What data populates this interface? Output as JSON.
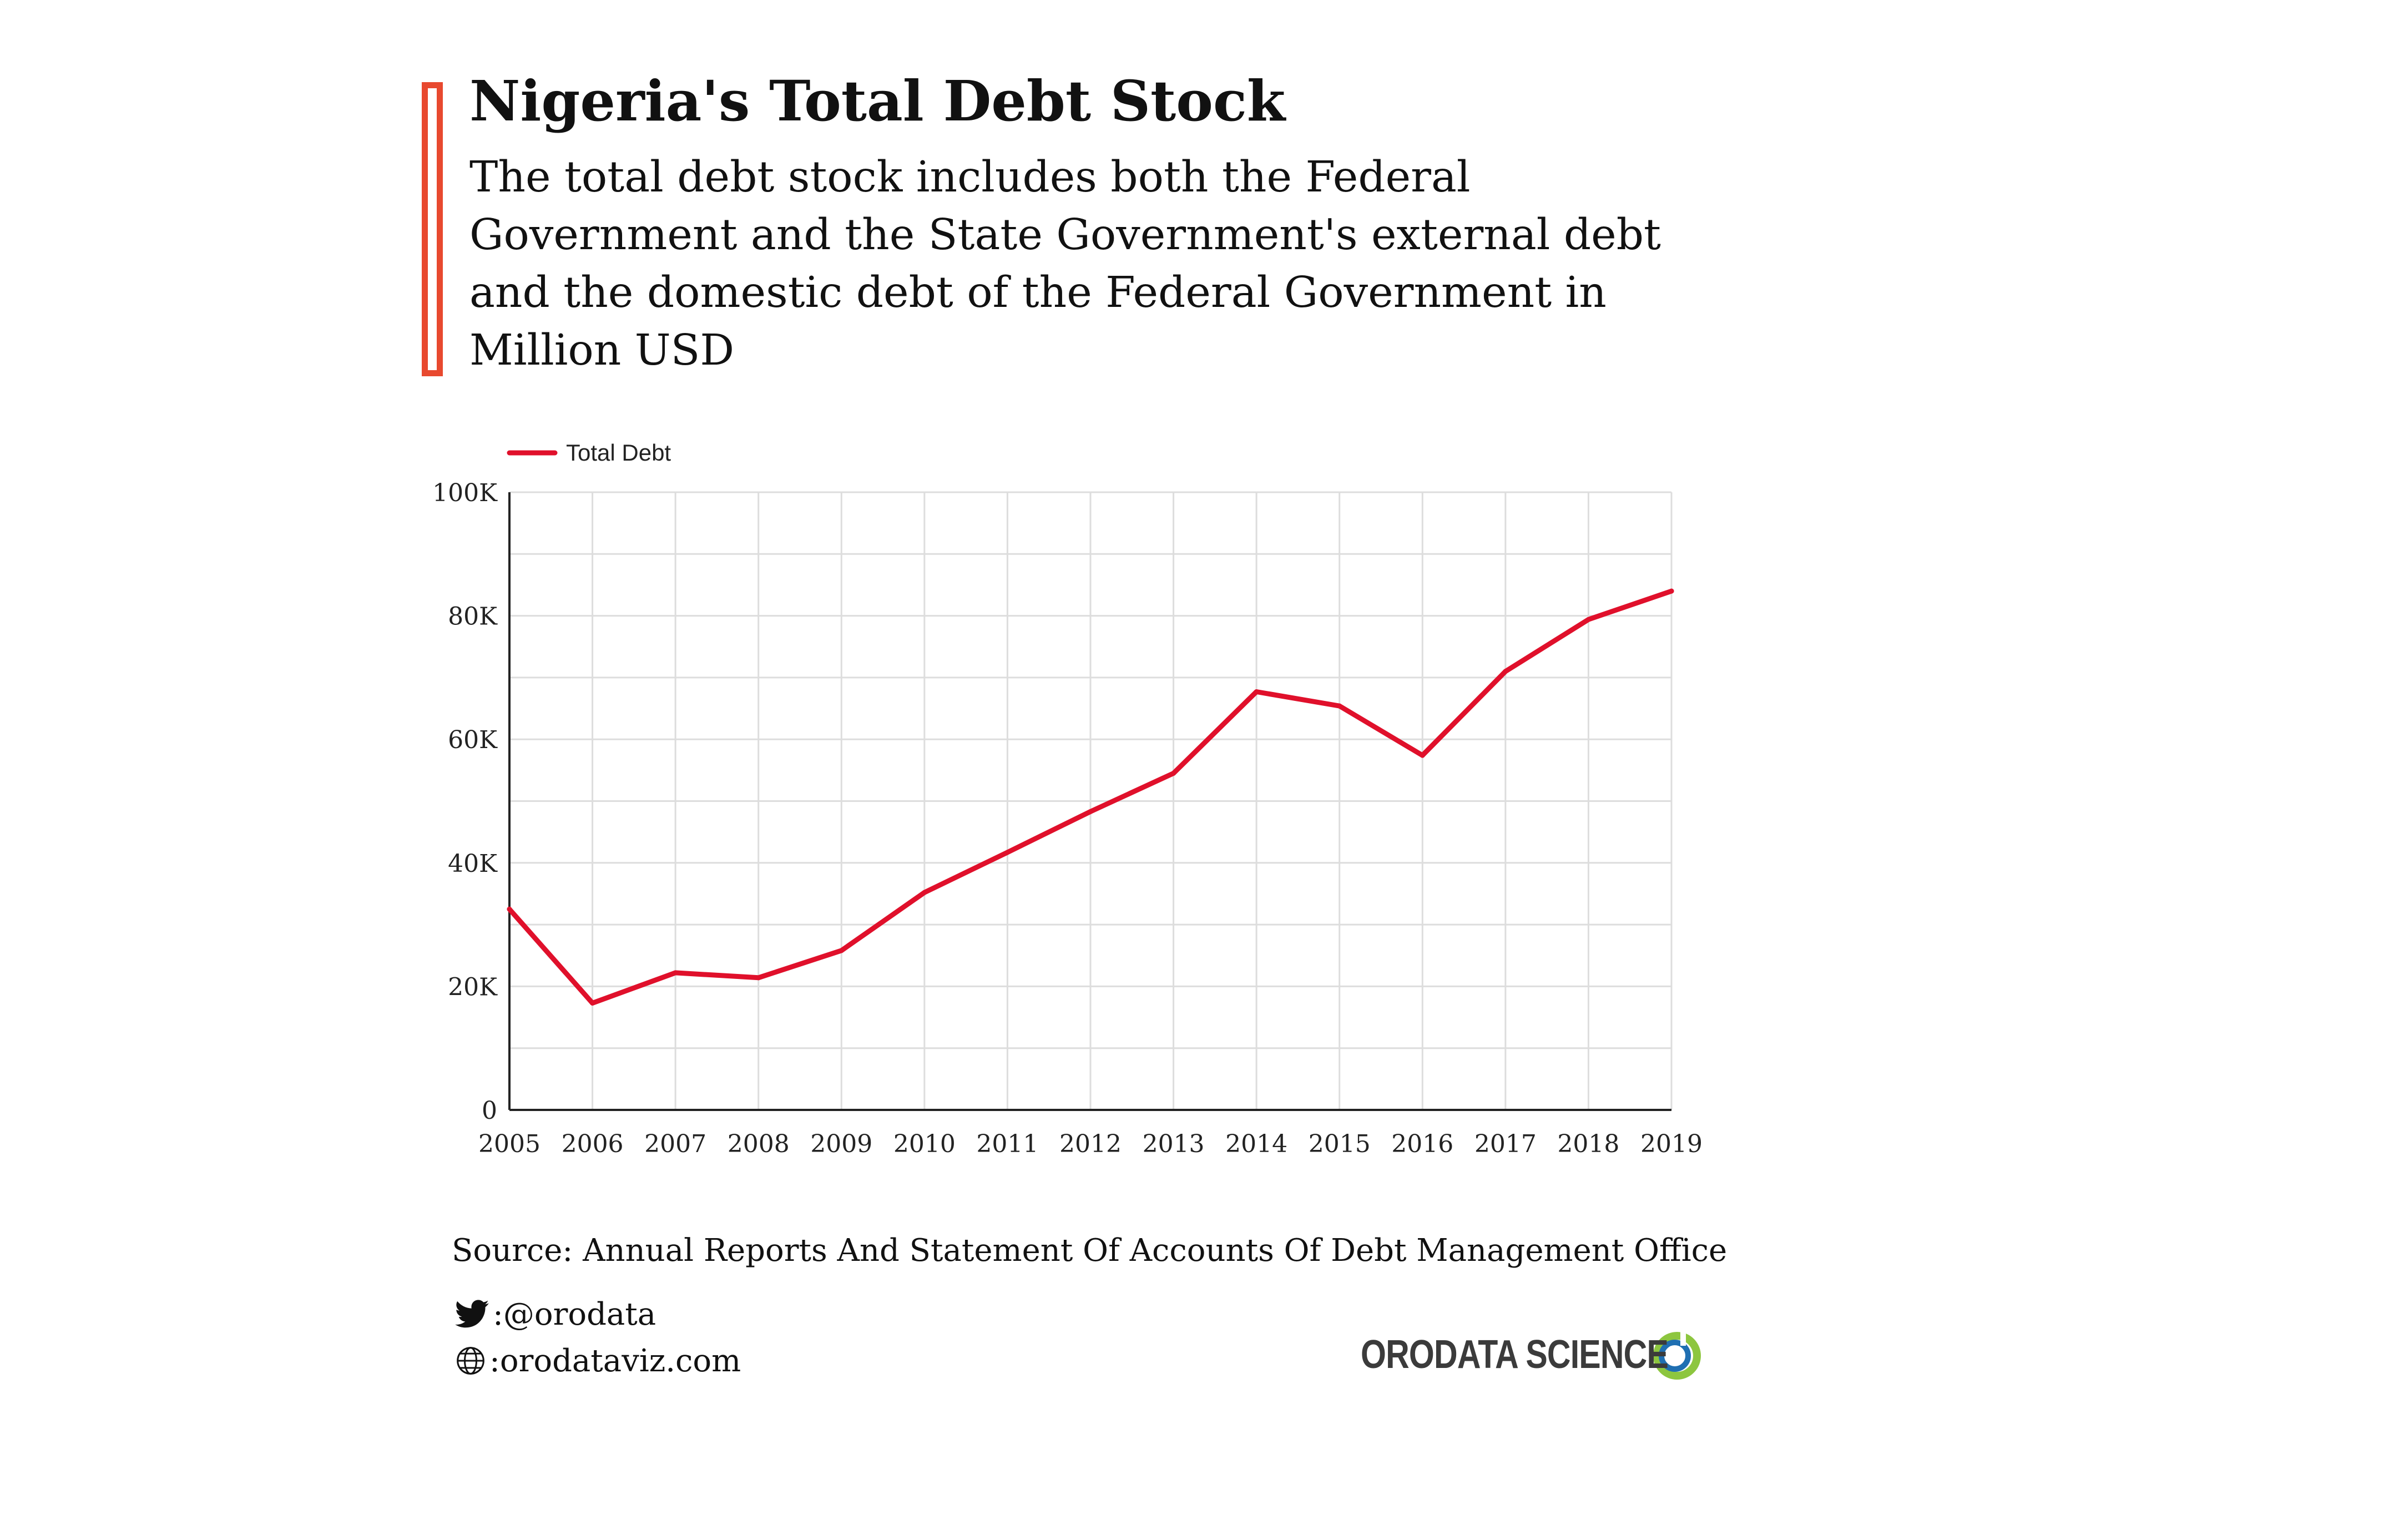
{
  "header": {
    "title": "Nigeria's Total Debt Stock",
    "subtitle": "The total debt stock includes both the Federal Government and the State Government's external debt and the domestic debt of the Federal Government in Million USD",
    "accent_color": "#e8492f"
  },
  "chart_data": {
    "type": "line",
    "title": "Nigeria's Total Debt Stock",
    "subtitle": "The total debt stock includes both the Federal Government and the State Government's external debt and the domestic debt of the Federal Government in Million USD",
    "xlabel": "",
    "ylabel": "",
    "x": [
      "2005",
      "2006",
      "2007",
      "2008",
      "2009",
      "2010",
      "2011",
      "2012",
      "2013",
      "2014",
      "2015",
      "2016",
      "2017",
      "2018",
      "2019"
    ],
    "series": [
      {
        "name": "Total Debt",
        "color": "#e0102b",
        "values": [
          32500,
          17300,
          22200,
          21400,
          25800,
          35200,
          41700,
          48300,
          54500,
          67700,
          65400,
          57400,
          71000,
          79400,
          84000
        ]
      }
    ],
    "ylim": [
      0,
      100000
    ],
    "yticks": [
      0,
      20000,
      40000,
      60000,
      80000,
      100000
    ],
    "ytick_labels": [
      "0",
      "20K",
      "40K",
      "60K",
      "80K",
      "100K"
    ],
    "grid": true,
    "legend_position": "top-left"
  },
  "footer": {
    "source": "Source: Annual Reports And Statement Of Accounts Of Debt Management Office",
    "twitter": ":@orodata",
    "website": ":orodataviz.com",
    "twitter_icon": "twitter-bird-icon",
    "website_icon": "globe-icon"
  },
  "logo": {
    "text": "ORODATA SCIENCE",
    "colors": [
      "#3b3b3b",
      "#8dc63f",
      "#1f6fb2"
    ]
  }
}
